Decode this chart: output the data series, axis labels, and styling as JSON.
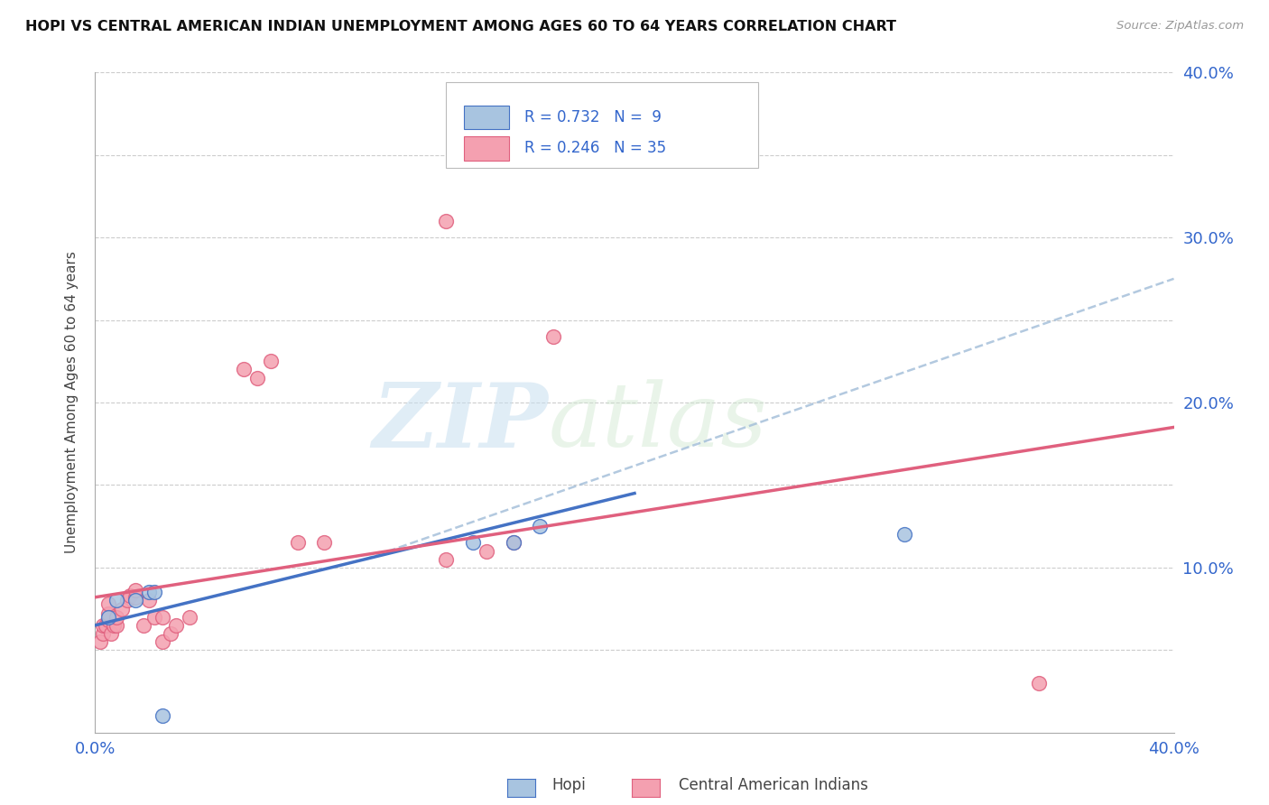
{
  "title": "HOPI VS CENTRAL AMERICAN INDIAN UNEMPLOYMENT AMONG AGES 60 TO 64 YEARS CORRELATION CHART",
  "source": "Source: ZipAtlas.com",
  "ylabel": "Unemployment Among Ages 60 to 64 years",
  "xlim": [
    0.0,
    0.4
  ],
  "ylim": [
    0.0,
    0.4
  ],
  "hopi_color": "#a8c4e0",
  "central_color": "#f4a0b0",
  "hopi_line_color": "#4472c4",
  "central_line_color": "#e0607e",
  "dashed_line_color": "#a0bcd8",
  "watermark_zip": "ZIP",
  "watermark_atlas": "atlas",
  "hopi_R": 0.732,
  "hopi_N": 9,
  "central_R": 0.246,
  "central_N": 35,
  "hopi_scatter_x": [
    0.005,
    0.008,
    0.015,
    0.02,
    0.022,
    0.14,
    0.155,
    0.165,
    0.3
  ],
  "hopi_scatter_y": [
    0.07,
    0.08,
    0.08,
    0.085,
    0.085,
    0.115,
    0.115,
    0.125,
    0.12
  ],
  "hopi_low_x": [
    0.025
  ],
  "hopi_low_y": [
    0.01
  ],
  "central_scatter_x": [
    0.002,
    0.003,
    0.003,
    0.004,
    0.005,
    0.005,
    0.005,
    0.006,
    0.007,
    0.008,
    0.008,
    0.01,
    0.012,
    0.013,
    0.015,
    0.015,
    0.018,
    0.02,
    0.022,
    0.025,
    0.025,
    0.028,
    0.03,
    0.035,
    0.055,
    0.06,
    0.065,
    0.075,
    0.085,
    0.13,
    0.145,
    0.155,
    0.17,
    0.35
  ],
  "central_scatter_y": [
    0.055,
    0.06,
    0.065,
    0.065,
    0.068,
    0.072,
    0.078,
    0.06,
    0.065,
    0.065,
    0.07,
    0.075,
    0.08,
    0.083,
    0.082,
    0.086,
    0.065,
    0.08,
    0.07,
    0.055,
    0.07,
    0.06,
    0.065,
    0.07,
    0.22,
    0.215,
    0.225,
    0.115,
    0.115,
    0.105,
    0.11,
    0.115,
    0.24,
    0.03
  ],
  "central_outlier_x": [
    0.13
  ],
  "central_outlier_y": [
    0.31
  ],
  "hopi_line_x": [
    0.0,
    0.2
  ],
  "hopi_line_y": [
    0.065,
    0.145
  ],
  "central_line_x": [
    0.0,
    0.4
  ],
  "central_line_y": [
    0.082,
    0.185
  ],
  "dashed_line_x": [
    0.1,
    0.4
  ],
  "dashed_line_y": [
    0.105,
    0.275
  ]
}
